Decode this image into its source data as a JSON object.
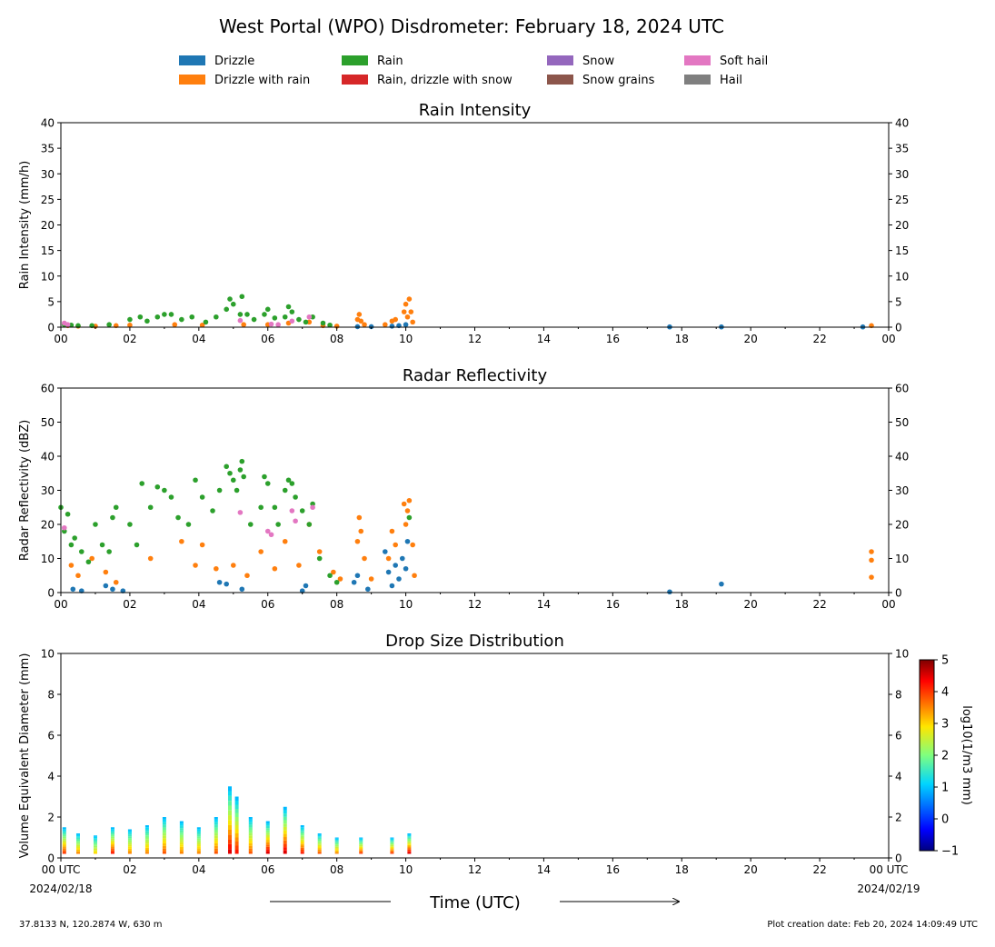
{
  "title": "West Portal (WPO) Disdrometer: February 18, 2024 UTC",
  "legend": {
    "placement": "top-center",
    "items": [
      {
        "label": "Drizzle",
        "color": "#1f77b4"
      },
      {
        "label": "Drizzle with rain",
        "color": "#ff7f0e"
      },
      {
        "label": "Rain",
        "color": "#2ca02c"
      },
      {
        "label": "Rain, drizzle with snow",
        "color": "#d62728"
      },
      {
        "label": "Snow",
        "color": "#9467bd"
      },
      {
        "label": "Snow grains",
        "color": "#8c564b"
      },
      {
        "label": "Soft hail",
        "color": "#e377c2"
      },
      {
        "label": "Hail",
        "color": "#7f7f7f"
      }
    ]
  },
  "xaxis": {
    "label": "Time (UTC)",
    "ticks": [
      "00",
      "02",
      "04",
      "06",
      "08",
      "10",
      "12",
      "14",
      "16",
      "18",
      "20",
      "22",
      "00"
    ],
    "bottom_ticks": [
      "00 UTC",
      "02",
      "04",
      "06",
      "08",
      "10",
      "12",
      "14",
      "16",
      "18",
      "20",
      "22",
      "00 UTC"
    ],
    "start_date": "2024/02/18",
    "end_date": "2024/02/19"
  },
  "footer": {
    "location": "37.8133 N, 120.2874 W, 630 m",
    "created": "Plot creation date: Feb 20, 2024 14:09:49 UTC"
  },
  "chart_data": [
    {
      "type": "scatter",
      "title": "Rain Intensity",
      "ylabel": "Rain Intensity (mm/h)",
      "xlim": [
        0,
        24
      ],
      "ylim": [
        0,
        40
      ],
      "yticks": [
        0,
        5,
        10,
        15,
        20,
        25,
        30,
        35,
        40
      ],
      "grid": false,
      "series": [
        {
          "name": "Drizzle",
          "color": "#1f77b4",
          "x": [
            8.6,
            9.0,
            9.6,
            9.8,
            10.0,
            17.65,
            19.15,
            23.25
          ],
          "y": [
            0.1,
            0.1,
            0.2,
            0.3,
            0.5,
            0.05,
            0.05,
            0.05
          ]
        },
        {
          "name": "Drizzle with rain",
          "color": "#ff7f0e",
          "x": [
            0.2,
            0.5,
            1.0,
            1.6,
            2.0,
            3.3,
            4.1,
            5.3,
            6.0,
            6.6,
            7.2,
            7.6,
            8.0,
            8.6,
            8.65,
            8.7,
            8.8,
            9.4,
            9.6,
            9.7,
            9.95,
            10.0,
            10.05,
            10.1,
            10.15,
            10.2,
            23.5
          ],
          "y": [
            0.3,
            0.2,
            0.2,
            0.3,
            0.4,
            0.5,
            0.4,
            0.5,
            0.5,
            0.8,
            1.0,
            0.3,
            0.2,
            1.5,
            2.5,
            1.2,
            0.5,
            0.5,
            1.2,
            1.5,
            3.0,
            4.5,
            2.0,
            5.5,
            3.0,
            1.0,
            0.3
          ]
        },
        {
          "name": "Rain",
          "color": "#2ca02c",
          "x": [
            0.1,
            0.3,
            0.5,
            0.9,
            1.4,
            2.0,
            2.3,
            2.5,
            2.8,
            3.0,
            3.2,
            3.5,
            3.8,
            4.2,
            4.5,
            4.8,
            4.9,
            5.0,
            5.2,
            5.25,
            5.4,
            5.6,
            5.9,
            6.0,
            6.2,
            6.5,
            6.6,
            6.7,
            6.9,
            7.1,
            7.3,
            7.6,
            7.8
          ],
          "y": [
            0.5,
            0.4,
            0.3,
            0.3,
            0.5,
            1.5,
            2.0,
            1.2,
            2.0,
            2.5,
            2.5,
            1.5,
            2.0,
            1.0,
            2.0,
            3.5,
            5.5,
            4.5,
            2.5,
            6.0,
            2.5,
            1.5,
            2.5,
            3.5,
            1.8,
            2.0,
            4.0,
            3.0,
            1.5,
            1.0,
            2.0,
            0.8,
            0.4
          ]
        },
        {
          "name": "Soft hail",
          "color": "#e377c2",
          "x": [
            0.1,
            0.2,
            5.2,
            6.1,
            6.3,
            6.7,
            7.2
          ],
          "y": [
            0.8,
            0.5,
            1.3,
            0.6,
            0.5,
            1.2,
            2.0
          ]
        }
      ]
    },
    {
      "type": "scatter",
      "title": "Radar Reflectivity",
      "ylabel": "Radar Reflectivity (dBZ)",
      "xlim": [
        0,
        24
      ],
      "ylim": [
        0,
        60
      ],
      "yticks": [
        0,
        10,
        20,
        30,
        40,
        50,
        60
      ],
      "grid": false,
      "series": [
        {
          "name": "Drizzle",
          "color": "#1f77b4",
          "x": [
            0.35,
            0.6,
            1.3,
            1.5,
            1.8,
            4.6,
            4.8,
            5.25,
            7.0,
            7.1,
            8.5,
            8.6,
            8.9,
            9.4,
            9.5,
            9.6,
            9.7,
            9.8,
            9.9,
            10.0,
            10.05,
            17.65,
            19.15
          ],
          "y": [
            1.0,
            0.5,
            2.0,
            1.0,
            0.5,
            3.0,
            2.5,
            1.0,
            0.5,
            2.0,
            3.0,
            5.0,
            1.0,
            12.0,
            6.0,
            2.0,
            8.0,
            4.0,
            10.0,
            7.0,
            15.0,
            0.2,
            2.5
          ]
        },
        {
          "name": "Drizzle with rain",
          "color": "#ff7f0e",
          "x": [
            0.3,
            0.5,
            0.9,
            1.3,
            1.6,
            2.6,
            3.5,
            3.9,
            4.1,
            4.5,
            5.0,
            5.4,
            5.8,
            6.2,
            6.5,
            6.9,
            7.2,
            7.5,
            7.9,
            8.1,
            8.6,
            8.65,
            8.7,
            8.8,
            9.0,
            9.5,
            9.6,
            9.7,
            9.95,
            10.0,
            10.05,
            10.1,
            10.2,
            10.25,
            23.5,
            23.5,
            23.5
          ],
          "y": [
            8.0,
            5.0,
            10.0,
            6.0,
            3.0,
            10.0,
            15.0,
            8.0,
            14.0,
            7.0,
            8.0,
            5.0,
            12.0,
            7.0,
            15.0,
            8.0,
            20.0,
            12.0,
            6.0,
            4.0,
            15.0,
            22.0,
            18.0,
            10.0,
            4.0,
            10.0,
            18.0,
            14.0,
            26.0,
            20.0,
            24.0,
            27.0,
            14.0,
            5.0,
            12.0,
            9.5,
            4.5
          ]
        },
        {
          "name": "Rain",
          "color": "#2ca02c",
          "x": [
            0.0,
            0.1,
            0.2,
            0.3,
            0.4,
            0.6,
            0.8,
            1.0,
            1.2,
            1.4,
            1.5,
            1.6,
            2.0,
            2.2,
            2.35,
            2.6,
            2.8,
            3.0,
            3.2,
            3.4,
            3.7,
            3.9,
            4.1,
            4.4,
            4.6,
            4.8,
            4.9,
            5.0,
            5.1,
            5.2,
            5.25,
            5.3,
            5.5,
            5.8,
            5.9,
            6.0,
            6.2,
            6.3,
            6.5,
            6.6,
            6.7,
            6.8,
            7.0,
            7.2,
            7.3,
            7.5,
            7.8,
            8.0,
            10.1
          ],
          "y": [
            25.0,
            18.0,
            23.0,
            14.0,
            16.0,
            12.0,
            9.0,
            20.0,
            14.0,
            12.0,
            22.0,
            25.0,
            20.0,
            14.0,
            32.0,
            25.0,
            31.0,
            30.0,
            28.0,
            22.0,
            20.0,
            33.0,
            28.0,
            24.0,
            30.0,
            37.0,
            35.0,
            33.0,
            30.0,
            36.0,
            38.5,
            34.0,
            20.0,
            25.0,
            34.0,
            32.0,
            25.0,
            20.0,
            30.0,
            33.0,
            32.0,
            28.0,
            24.0,
            20.0,
            26.0,
            10.0,
            5.0,
            3.0,
            22.0
          ]
        },
        {
          "name": "Soft hail",
          "color": "#e377c2",
          "x": [
            0.1,
            5.2,
            6.0,
            6.1,
            6.7,
            6.8,
            7.3
          ],
          "y": [
            19.0,
            23.5,
            18.0,
            17.0,
            24.0,
            21.0,
            25.0
          ]
        }
      ]
    },
    {
      "type": "heatmap",
      "title": "Drop Size Distribution",
      "ylabel": "Volume Equivalent Diameter (mm)",
      "xlim": [
        0,
        24
      ],
      "ylim": [
        0,
        10
      ],
      "yticks": [
        0,
        2,
        4,
        6,
        8,
        10
      ],
      "colorbar": {
        "label": "log10(1/m3 mm)",
        "range": [
          -1,
          5
        ],
        "ticks": [
          -1,
          0,
          1,
          2,
          3,
          4,
          5
        ]
      },
      "columns": [
        {
          "x": 0.1,
          "top": 1.5,
          "peak": 4.0
        },
        {
          "x": 0.5,
          "top": 1.2,
          "peak": 3.5
        },
        {
          "x": 1.0,
          "top": 1.1,
          "peak": 3.0
        },
        {
          "x": 1.5,
          "top": 1.5,
          "peak": 4.2
        },
        {
          "x": 2.0,
          "top": 1.4,
          "peak": 3.5
        },
        {
          "x": 2.5,
          "top": 1.6,
          "peak": 3.5
        },
        {
          "x": 3.0,
          "top": 2.0,
          "peak": 3.8
        },
        {
          "x": 3.5,
          "top": 1.8,
          "peak": 3.5
        },
        {
          "x": 4.0,
          "top": 1.5,
          "peak": 3.5
        },
        {
          "x": 4.5,
          "top": 2.0,
          "peak": 3.8
        },
        {
          "x": 4.9,
          "top": 3.5,
          "peak": 4.5
        },
        {
          "x": 5.1,
          "top": 3.0,
          "peak": 4.2
        },
        {
          "x": 5.5,
          "top": 2.0,
          "peak": 3.8
        },
        {
          "x": 6.0,
          "top": 1.8,
          "peak": 4.5
        },
        {
          "x": 6.5,
          "top": 2.5,
          "peak": 4.5
        },
        {
          "x": 7.0,
          "top": 1.6,
          "peak": 4.2
        },
        {
          "x": 7.5,
          "top": 1.2,
          "peak": 3.8
        },
        {
          "x": 8.0,
          "top": 1.0,
          "peak": 3.5
        },
        {
          "x": 8.7,
          "top": 1.0,
          "peak": 4.0
        },
        {
          "x": 9.6,
          "top": 1.0,
          "peak": 4.0
        },
        {
          "x": 10.1,
          "top": 1.2,
          "peak": 4.5
        }
      ]
    }
  ]
}
